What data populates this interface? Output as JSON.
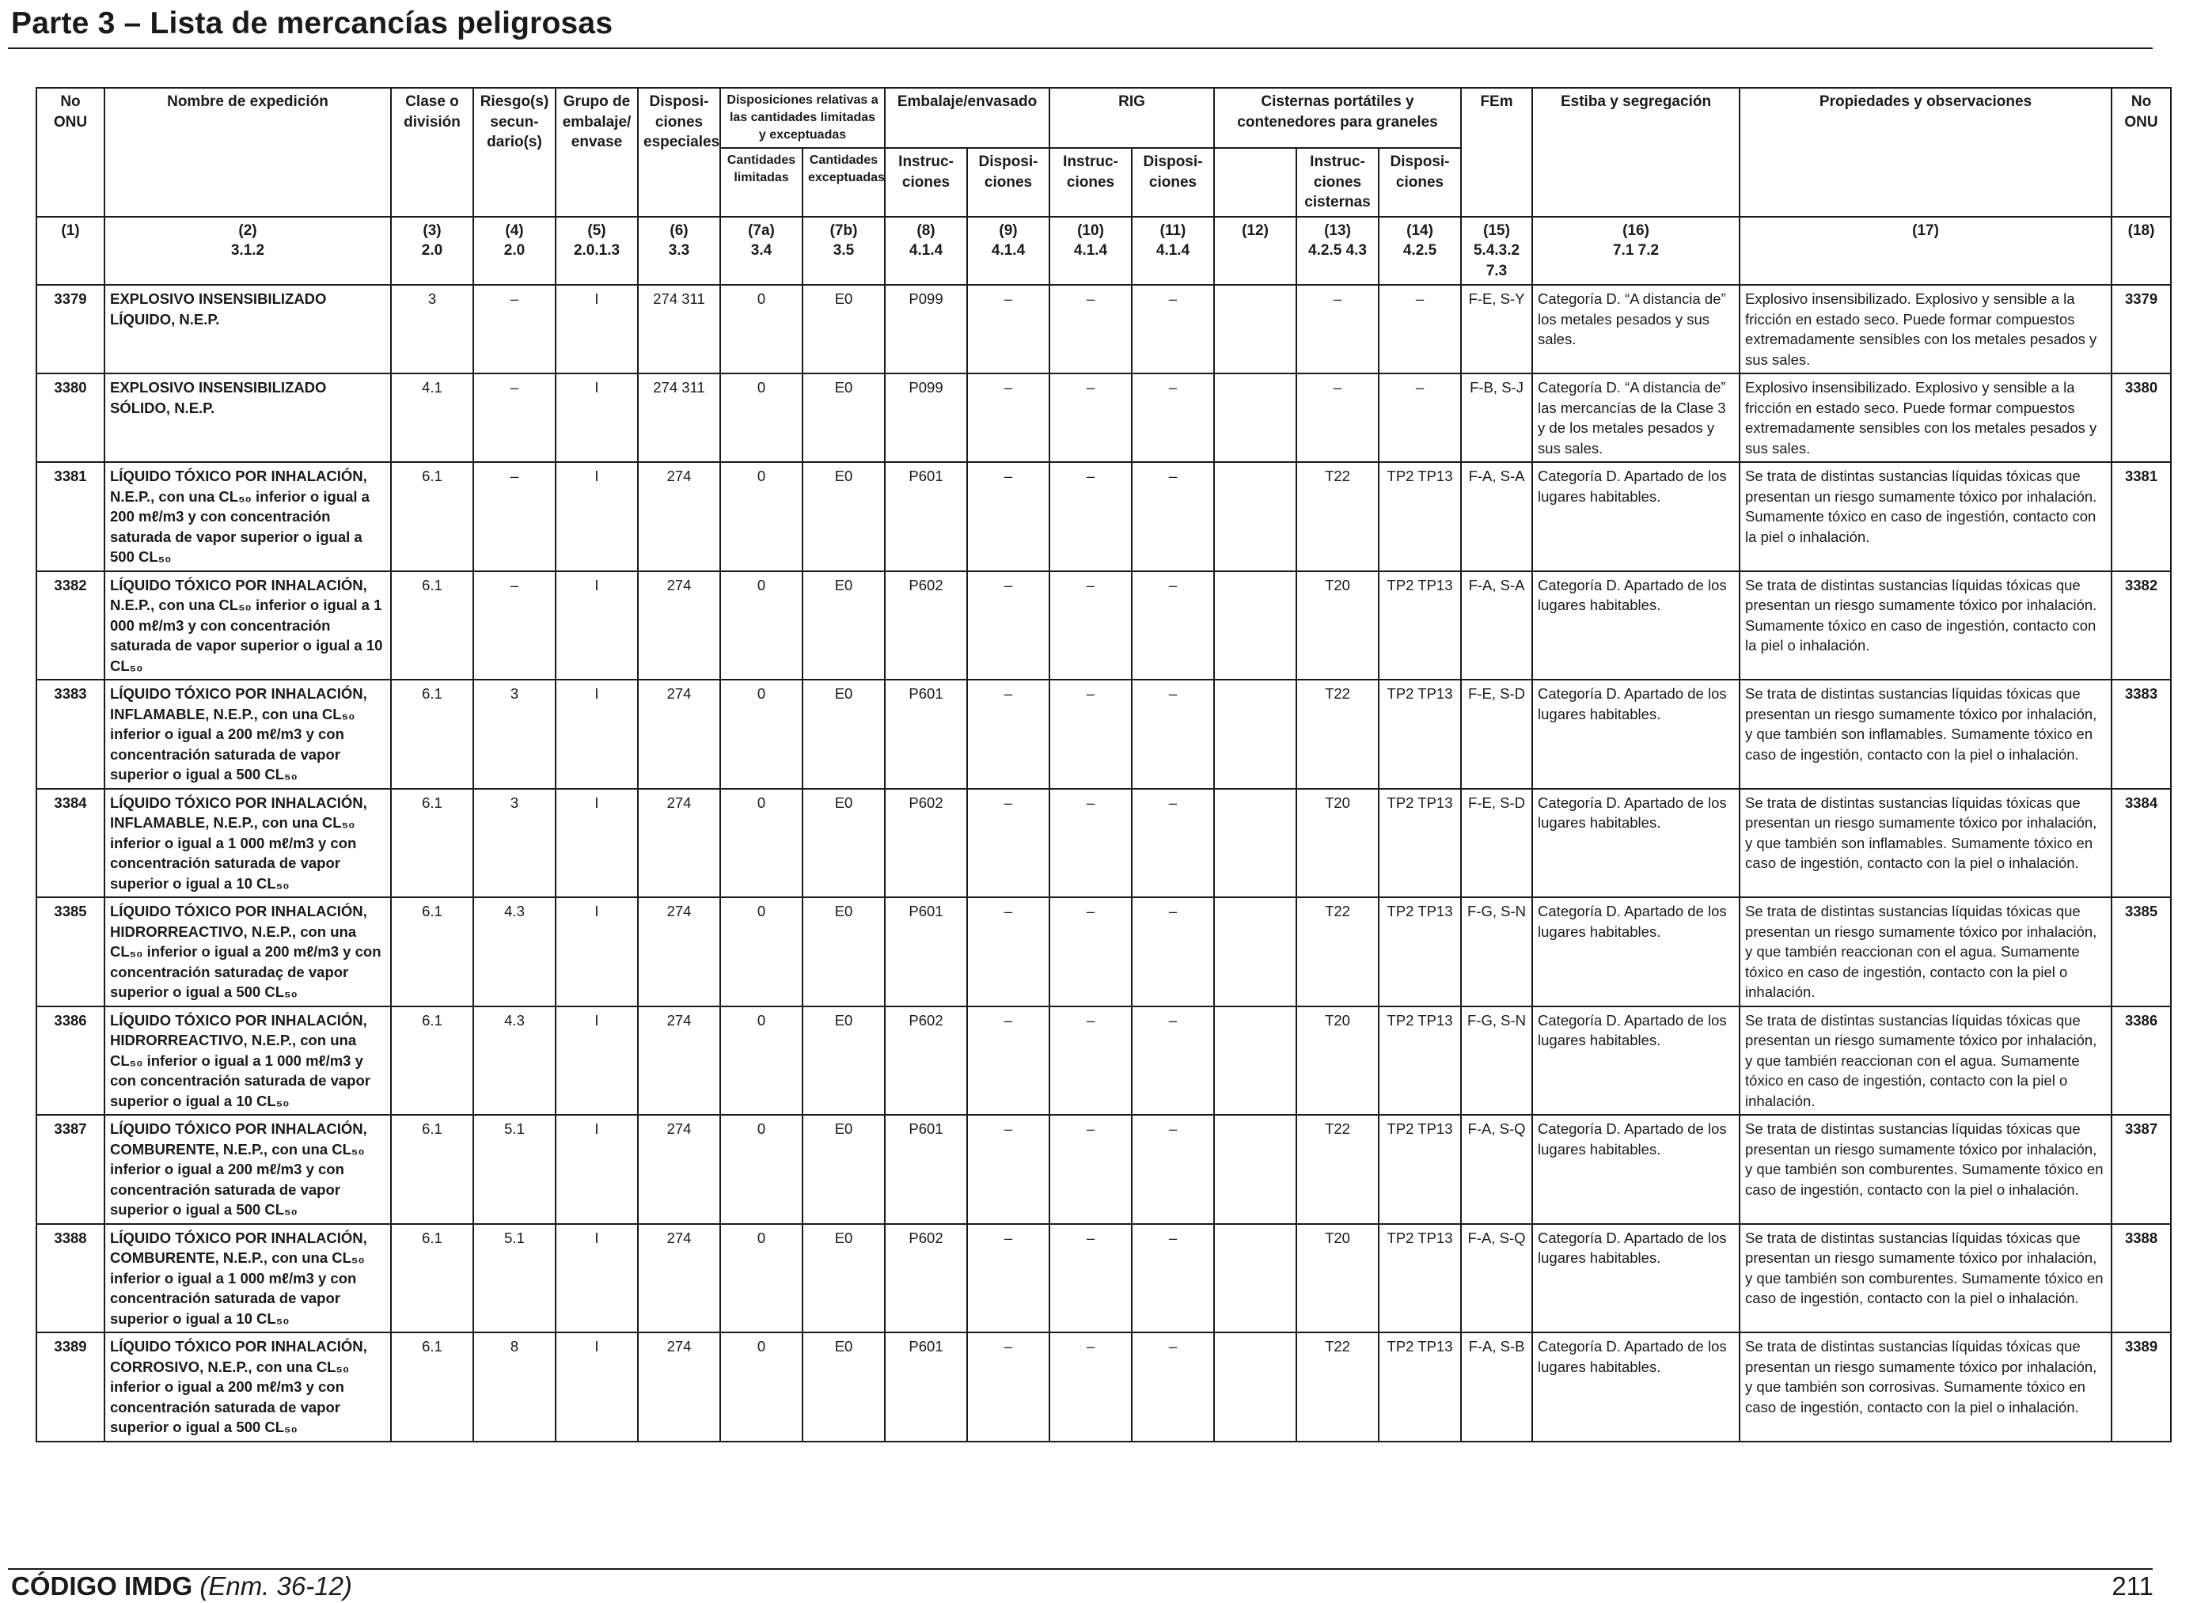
{
  "header": {
    "title": "Parte 3 – Lista de mercancías peligrosas"
  },
  "columns": {
    "un": "No ONU",
    "name": "Nombre de expedición",
    "class": "Clase o división",
    "subsidiary": "Riesgo(s) secun- dario(s)",
    "packing_group": "Grupo de embalaje/ envase",
    "special": "Disposi- ciones especiales",
    "limited_group": "Disposiciones relativas a las cantidades limitadas y exceptuadas",
    "limited": "Cantidades limitadas",
    "excepted": "Cantidades exceptuadas",
    "packaging_group": "Embalaje/envasado",
    "pack_instr": "Instruc- ciones",
    "pack_prov": "Disposi- ciones",
    "ibc_group": "RIG",
    "ibc_instr": "Instruc- ciones",
    "ibc_prov": "Disposi- ciones",
    "tank_group": "Cisternas portátiles y contenedores para graneles",
    "tank_instr": "Instruc- ciones cisternas",
    "tank_prov": "Disposi- ciones",
    "ems": "FEm",
    "stowage": "Estiba y segregación",
    "properties": "Propiedades y observaciones",
    "un_right": "No ONU"
  },
  "col_numbers": [
    [
      "(1)",
      ""
    ],
    [
      "(2)",
      "3.1.2"
    ],
    [
      "(3)",
      "2.0"
    ],
    [
      "(4)",
      "2.0"
    ],
    [
      "(5)",
      "2.0.1.3"
    ],
    [
      "(6)",
      "3.3"
    ],
    [
      "(7a)",
      "3.4"
    ],
    [
      "(7b)",
      "3.5"
    ],
    [
      "(8)",
      "4.1.4"
    ],
    [
      "(9)",
      "4.1.4"
    ],
    [
      "(10)",
      "4.1.4"
    ],
    [
      "(11)",
      "4.1.4"
    ],
    [
      "(12)",
      ""
    ],
    [
      "(13)",
      "4.2.5 4.3"
    ],
    [
      "(14)",
      "4.2.5"
    ],
    [
      "(15)",
      "5.4.3.2 7.3"
    ],
    [
      "(16)",
      "7.1 7.2"
    ],
    [
      "(17)",
      ""
    ],
    [
      "(18)",
      ""
    ]
  ],
  "rows": [
    {
      "un": "3379",
      "name": "EXPLOSIVO INSENSIBILIZADO LÍQUIDO, N.E.P.",
      "cls": "3",
      "sub": "–",
      "pg": "I",
      "sp": "274 311",
      "lq": "0",
      "eq": "E0",
      "pi": "P099",
      "pp": "–",
      "ii": "–",
      "ip": "–",
      "c12": "",
      "ti": "–",
      "tp": "–",
      "ems": "F-E, S-Y",
      "stow": "Categoría D. “A distancia de” los metales pesados y sus sales.",
      "prop": "Explosivo insensibilizado. Explosivo y sensible a la fricción en estado seco. Puede formar compuestos extremadamente sensibles con los metales pesados y sus sales."
    },
    {
      "un": "3380",
      "name": "EXPLOSIVO INSENSIBILIZADO SÓLIDO, N.E.P.",
      "cls": "4.1",
      "sub": "–",
      "pg": "I",
      "sp": "274 311",
      "lq": "0",
      "eq": "E0",
      "pi": "P099",
      "pp": "–",
      "ii": "–",
      "ip": "–",
      "c12": "",
      "ti": "–",
      "tp": "–",
      "ems": "F-B, S-J",
      "stow": "Categoría D. “A distancia de” las mercancías de la Clase 3 y de los metales pesados y sus sales.",
      "prop": "Explosivo insensibilizado. Explosivo y sensible a la fricción en estado seco. Puede formar compuestos extremadamente sensibles con los metales pesados y sus sales."
    },
    {
      "un": "3381",
      "name": "LÍQUIDO TÓXICO POR INHALACIÓN, N.E.P., con una CL₅₀ inferior o igual a 200 mℓ/m3 y con concentración saturada de vapor superior o igual a 500 CL₅₀",
      "cls": "6.1",
      "sub": "–",
      "pg": "I",
      "sp": "274",
      "lq": "0",
      "eq": "E0",
      "pi": "P601",
      "pp": "–",
      "ii": "–",
      "ip": "–",
      "c12": "",
      "ti": "T22",
      "tp": "TP2 TP13",
      "ems": "F-A, S-A",
      "stow": "Categoría D. Apartado de los lugares habitables.",
      "prop": "Se trata de distintas sustancias líquidas tóxicas que presentan un riesgo sumamente tóxico por inhalación. Sumamente tóxico en caso de ingestión, contacto con la piel o inhalación."
    },
    {
      "un": "3382",
      "name": "LÍQUIDO TÓXICO POR INHALACIÓN, N.E.P., con una CL₅₀ inferior o igual a 1 000 mℓ/m3 y con concentración saturada de vapor superior o igual a 10 CL₅₀",
      "cls": "6.1",
      "sub": "–",
      "pg": "I",
      "sp": "274",
      "lq": "0",
      "eq": "E0",
      "pi": "P602",
      "pp": "–",
      "ii": "–",
      "ip": "–",
      "c12": "",
      "ti": "T20",
      "tp": "TP2 TP13",
      "ems": "F-A, S-A",
      "stow": "Categoría D. Apartado de los lugares habitables.",
      "prop": "Se trata de distintas sustancias líquidas tóxicas que presentan un riesgo sumamente tóxico por inhalación. Sumamente tóxico en caso de ingestión, contacto con la piel o inhalación."
    },
    {
      "un": "3383",
      "name": "LÍQUIDO TÓXICO POR INHALACIÓN, INFLAMABLE, N.E.P., con una CL₅₀ inferior o igual a 200 mℓ/m3 y con concentración saturada de vapor superior o igual a 500 CL₅₀",
      "cls": "6.1",
      "sub": "3",
      "pg": "I",
      "sp": "274",
      "lq": "0",
      "eq": "E0",
      "pi": "P601",
      "pp": "–",
      "ii": "–",
      "ip": "–",
      "c12": "",
      "ti": "T22",
      "tp": "TP2 TP13",
      "ems": "F-E, S-D",
      "stow": "Categoría D. Apartado de los lugares habitables.",
      "prop": "Se trata de distintas sustancias líquidas tóxicas que presentan un riesgo sumamente tóxico por inhalación, y que también son inflamables. Sumamente tóxico en caso de ingestión, contacto con la piel o inhalación."
    },
    {
      "un": "3384",
      "name": "LÍQUIDO TÓXICO POR INHALACIÓN, INFLAMABLE, N.E.P., con una CL₅₀ inferior o igual a 1 000 mℓ/m3 y con concentración saturada de vapor superior o igual a 10 CL₅₀",
      "cls": "6.1",
      "sub": "3",
      "pg": "I",
      "sp": "274",
      "lq": "0",
      "eq": "E0",
      "pi": "P602",
      "pp": "–",
      "ii": "–",
      "ip": "–",
      "c12": "",
      "ti": "T20",
      "tp": "TP2 TP13",
      "ems": "F-E, S-D",
      "stow": "Categoría D. Apartado de los lugares habitables.",
      "prop": "Se trata de distintas sustancias líquidas tóxicas que presentan un riesgo sumamente tóxico por inhalación, y que también son inflamables. Sumamente tóxico en caso de ingestión, contacto con la piel o inhalación."
    },
    {
      "un": "3385",
      "name": "LÍQUIDO TÓXICO POR INHALACIÓN, HIDRORREACTIVO, N.E.P., con una CL₅₀ inferior o igual a 200 mℓ/m3 y con concentración saturadaç de vapor superior o igual a 500 CL₅₀",
      "cls": "6.1",
      "sub": "4.3",
      "pg": "I",
      "sp": "274",
      "lq": "0",
      "eq": "E0",
      "pi": "P601",
      "pp": "–",
      "ii": "–",
      "ip": "–",
      "c12": "",
      "ti": "T22",
      "tp": "TP2 TP13",
      "ems": "F-G, S-N",
      "stow": "Categoría D. Apartado de los lugares habitables.",
      "prop": "Se trata de distintas sustancias líquidas tóxicas que presentan un riesgo sumamente tóxico por inhalación, y que también reaccionan con el agua. Sumamente tóxico en caso de ingestión, contacto con la piel o inhalación."
    },
    {
      "un": "3386",
      "name": "LÍQUIDO TÓXICO POR INHALACIÓN, HIDRORREACTIVO, N.E.P., con una CL₅₀ inferior o igual a 1 000 mℓ/m3 y con concentración saturada de vapor superior o igual a 10 CL₅₀",
      "cls": "6.1",
      "sub": "4.3",
      "pg": "I",
      "sp": "274",
      "lq": "0",
      "eq": "E0",
      "pi": "P602",
      "pp": "–",
      "ii": "–",
      "ip": "–",
      "c12": "",
      "ti": "T20",
      "tp": "TP2 TP13",
      "ems": "F-G, S-N",
      "stow": "Categoría D. Apartado de los lugares habitables.",
      "prop": "Se trata de distintas sustancias líquidas tóxicas que presentan un riesgo sumamente tóxico por inhalación, y que también reaccionan con el agua. Sumamente tóxico en caso de ingestión, contacto con la piel o inhalación."
    },
    {
      "un": "3387",
      "name": "LÍQUIDO TÓXICO POR INHALACIÓN, COMBURENTE, N.E.P., con una CL₅₀ inferior o igual a 200 mℓ/m3 y con concentración saturada de vapor superior o igual a 500 CL₅₀",
      "cls": "6.1",
      "sub": "5.1",
      "pg": "I",
      "sp": "274",
      "lq": "0",
      "eq": "E0",
      "pi": "P601",
      "pp": "–",
      "ii": "–",
      "ip": "–",
      "c12": "",
      "ti": "T22",
      "tp": "TP2 TP13",
      "ems": "F-A, S-Q",
      "stow": "Categoría D. Apartado de los lugares habitables.",
      "prop": "Se trata de distintas sustancias líquidas tóxicas que presentan un riesgo sumamente tóxico por inhalación, y que también son comburentes. Sumamente tóxico en caso de ingestión, contacto con la piel o inhalación."
    },
    {
      "un": "3388",
      "name": "LÍQUIDO TÓXICO POR INHALACIÓN, COMBURENTE, N.E.P., con una CL₅₀ inferior o igual a 1 000 mℓ/m3 y con concentración saturada de vapor superior o igual a 10 CL₅₀",
      "cls": "6.1",
      "sub": "5.1",
      "pg": "I",
      "sp": "274",
      "lq": "0",
      "eq": "E0",
      "pi": "P602",
      "pp": "–",
      "ii": "–",
      "ip": "–",
      "c12": "",
      "ti": "T20",
      "tp": "TP2 TP13",
      "ems": "F-A, S-Q",
      "stow": "Categoría D. Apartado de los lugares habitables.",
      "prop": "Se trata de distintas sustancias líquidas tóxicas que presentan un riesgo sumamente tóxico por inhalación, y que también son comburentes. Sumamente tóxico en caso de ingestión, contacto con la piel o inhalación."
    },
    {
      "un": "3389",
      "name": "LÍQUIDO TÓXICO POR INHALACIÓN, CORROSIVO, N.E.P., con una CL₅₀ inferior o igual a 200 mℓ/m3 y con concentración saturada de vapor superior o igual a 500 CL₅₀",
      "cls": "6.1",
      "sub": "8",
      "pg": "I",
      "sp": "274",
      "lq": "0",
      "eq": "E0",
      "pi": "P601",
      "pp": "–",
      "ii": "–",
      "ip": "–",
      "c12": "",
      "ti": "T22",
      "tp": "TP2 TP13",
      "ems": "F-A, S-B",
      "stow": "Categoría D. Apartado de los lugares habitables.",
      "prop": "Se trata de distintas sustancias líquidas tóxicas que presentan un riesgo sumamente tóxico por inhalación, y que también son corrosivas. Sumamente tóxico en caso de ingestión, contacto con la piel o inhalación."
    }
  ],
  "footer": {
    "code": "CÓDIGO IMDG",
    "amendment": "(Enm. 36-12)",
    "page": "211"
  }
}
